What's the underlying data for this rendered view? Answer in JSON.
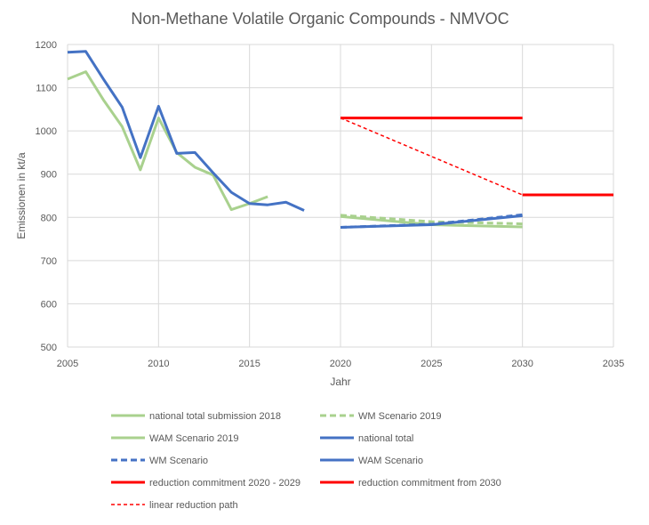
{
  "chart_data": {
    "type": "line",
    "title": "Non-Methane Volatile Organic Compounds - NMVOC",
    "xlabel": "Jahr",
    "ylabel": "Emissionen in kt/a",
    "xlim": [
      2005,
      2035
    ],
    "ylim": [
      500,
      1200
    ],
    "xticks": [
      2005,
      2010,
      2015,
      2020,
      2025,
      2030,
      2035
    ],
    "yticks": [
      500,
      600,
      700,
      800,
      900,
      1000,
      1100,
      1200
    ],
    "grid": true,
    "legend_position": "bottom",
    "series": [
      {
        "name": "national total submission 2018",
        "color": "#a9d18e",
        "dash": "solid",
        "x": [
          2005,
          2006,
          2007,
          2008,
          2009,
          2010,
          2011,
          2012,
          2013,
          2014,
          2015,
          2016
        ],
        "y": [
          1120,
          1137,
          1070,
          1010,
          910,
          1030,
          950,
          916,
          898,
          818,
          832,
          848
        ]
      },
      {
        "name": "WM Scenario 2019",
        "color": "#a9d18e",
        "dash": "dashed",
        "x": [
          2020,
          2025,
          2030
        ],
        "y": [
          805,
          790,
          785
        ]
      },
      {
        "name": "WAM Scenario 2019",
        "color": "#a9d18e",
        "dash": "solid",
        "x": [
          2020,
          2025,
          2030
        ],
        "y": [
          802,
          783,
          778
        ]
      },
      {
        "name": "national total",
        "color": "#4472c4",
        "dash": "solid",
        "x": [
          2005,
          2006,
          2007,
          2008,
          2009,
          2010,
          2011,
          2012,
          2013,
          2014,
          2015,
          2016,
          2017,
          2018
        ],
        "y": [
          1182,
          1184,
          1118,
          1055,
          938,
          1057,
          948,
          950,
          903,
          858,
          832,
          829,
          835,
          816
        ]
      },
      {
        "name": "WM Scenario",
        "color": "#4472c4",
        "dash": "dashed",
        "x": [
          2020,
          2025,
          2030
        ],
        "y": [
          777,
          784,
          806
        ]
      },
      {
        "name": "WAM Scenario",
        "color": "#4472c4",
        "dash": "solid",
        "x": [
          2020,
          2025,
          2030
        ],
        "y": [
          777,
          783,
          804
        ]
      },
      {
        "name": "reduction commitment 2020 - 2029",
        "color": "#ff0000",
        "dash": "solid",
        "x": [
          2020,
          2030
        ],
        "y": [
          1030,
          1030
        ]
      },
      {
        "name": "reduction commitment from 2030",
        "color": "#ff0000",
        "dash": "solid",
        "x": [
          2030,
          2035
        ],
        "y": [
          852,
          852
        ]
      },
      {
        "name": "linear reduction path",
        "color": "#ff0000",
        "dash": "dotted",
        "x": [
          2020,
          2030
        ],
        "y": [
          1030,
          852
        ]
      }
    ]
  }
}
